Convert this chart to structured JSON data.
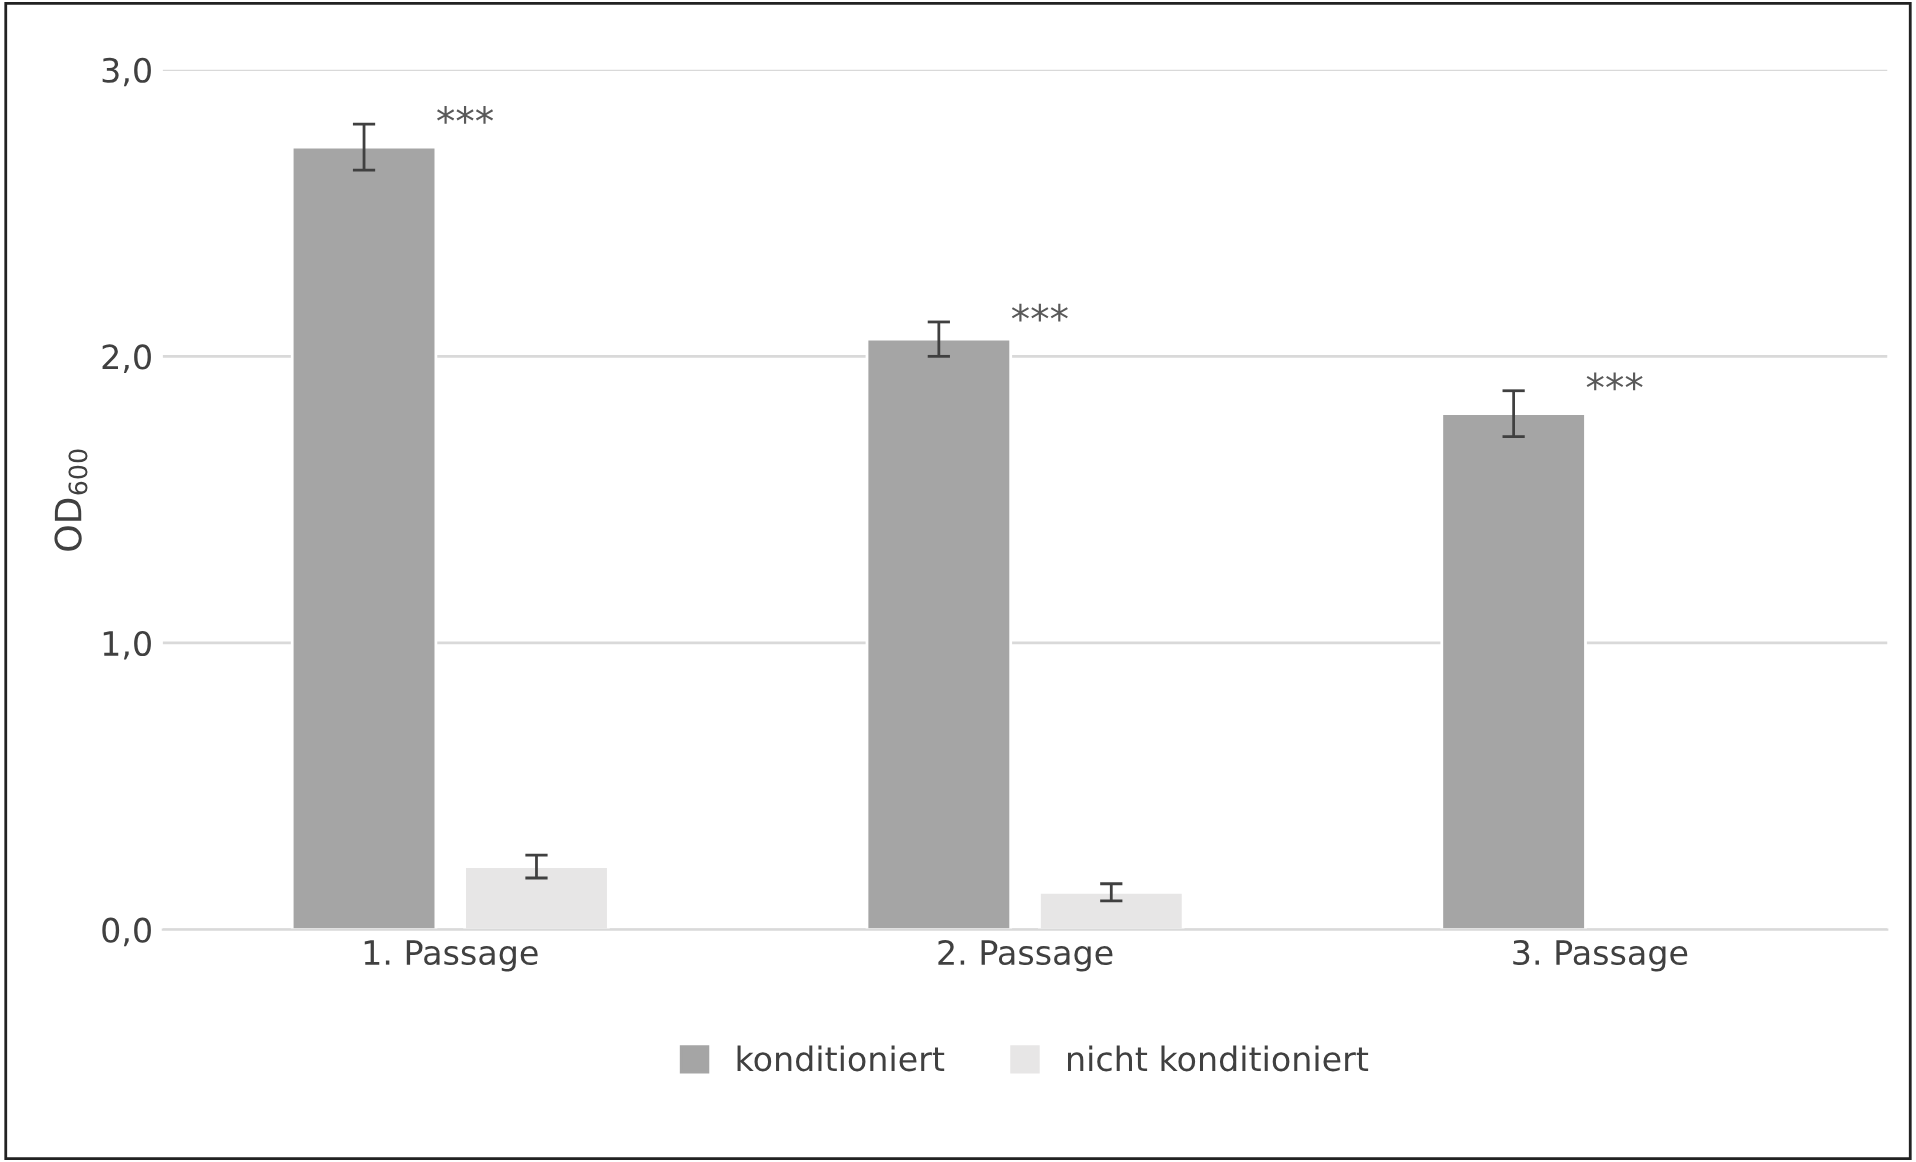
{
  "chart_data": {
    "type": "bar",
    "ylabel": "OD$_{600}$",
    "categories": [
      "1. Passage",
      "2. Passage",
      "3. Passage"
    ],
    "series": [
      {
        "name": "konditioniert",
        "color": "#a5a5a5",
        "values": [
          2.73,
          2.06,
          1.8
        ],
        "errors": [
          0.08,
          0.06,
          0.08
        ]
      },
      {
        "name": "nicht konditioniert",
        "color": "#e7e6e6",
        "values": [
          0.22,
          0.13,
          null
        ],
        "errors": [
          0.04,
          0.03,
          null
        ]
      }
    ],
    "ylim": [
      0,
      3.0
    ],
    "yticks": [
      {
        "value": 0,
        "label": "0,0"
      },
      {
        "value": 1,
        "label": "1,0"
      },
      {
        "value": 2,
        "label": "2,0"
      },
      {
        "value": 3,
        "label": "3,0"
      }
    ],
    "grid": "y",
    "legend": "bottom",
    "annotations": [
      "***",
      "***",
      "***"
    ]
  }
}
